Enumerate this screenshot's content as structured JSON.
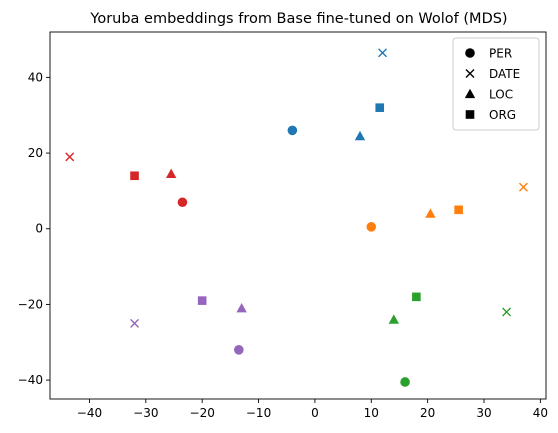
{
  "chart_data": {
    "type": "scatter",
    "title": "Yoruba embeddings from Base fine-tuned on Wolof (MDS)",
    "xlabel": "",
    "ylabel": "",
    "xlim": [
      -47,
      41
    ],
    "ylim": [
      -45,
      52
    ],
    "xticks": [
      -40,
      -30,
      -20,
      -10,
      0,
      10,
      20,
      30,
      40
    ],
    "yticks": [
      -40,
      -20,
      0,
      20,
      40
    ],
    "grid": false,
    "legend": {
      "placement": "top-right",
      "entries": [
        {
          "label": "PER",
          "marker": "circle"
        },
        {
          "label": "DATE",
          "marker": "x"
        },
        {
          "label": "LOC",
          "marker": "triangle"
        },
        {
          "label": "ORG",
          "marker": "square"
        }
      ]
    },
    "points": [
      {
        "x": -4,
        "y": 26,
        "marker": "circle",
        "color": "#1f77b4"
      },
      {
        "x": 12,
        "y": 46.5,
        "marker": "x",
        "color": "#1f77b4"
      },
      {
        "x": 8,
        "y": 24.5,
        "marker": "triangle",
        "color": "#1f77b4"
      },
      {
        "x": 11.5,
        "y": 32,
        "marker": "square",
        "color": "#1f77b4"
      },
      {
        "x": 10,
        "y": 0.5,
        "marker": "circle",
        "color": "#ff7f0e"
      },
      {
        "x": 37,
        "y": 11,
        "marker": "x",
        "color": "#ff7f0e"
      },
      {
        "x": 20.5,
        "y": 4,
        "marker": "triangle",
        "color": "#ff7f0e"
      },
      {
        "x": 25.5,
        "y": 5,
        "marker": "square",
        "color": "#ff7f0e"
      },
      {
        "x": 16,
        "y": -40.5,
        "marker": "circle",
        "color": "#2ca02c"
      },
      {
        "x": 34,
        "y": -22,
        "marker": "x",
        "color": "#2ca02c"
      },
      {
        "x": 14,
        "y": -24,
        "marker": "triangle",
        "color": "#2ca02c"
      },
      {
        "x": 18,
        "y": -18,
        "marker": "square",
        "color": "#2ca02c"
      },
      {
        "x": -23.5,
        "y": 7,
        "marker": "circle",
        "color": "#d62728"
      },
      {
        "x": -43.5,
        "y": 19,
        "marker": "x",
        "color": "#d62728"
      },
      {
        "x": -25.5,
        "y": 14.5,
        "marker": "triangle",
        "color": "#d62728"
      },
      {
        "x": -32,
        "y": 14,
        "marker": "square",
        "color": "#d62728"
      },
      {
        "x": -13.5,
        "y": -32,
        "marker": "circle",
        "color": "#9467bd"
      },
      {
        "x": -32,
        "y": -25,
        "marker": "x",
        "color": "#9467bd"
      },
      {
        "x": -13,
        "y": -21,
        "marker": "triangle",
        "color": "#9467bd"
      },
      {
        "x": -20,
        "y": -19,
        "marker": "square",
        "color": "#9467bd"
      }
    ]
  }
}
